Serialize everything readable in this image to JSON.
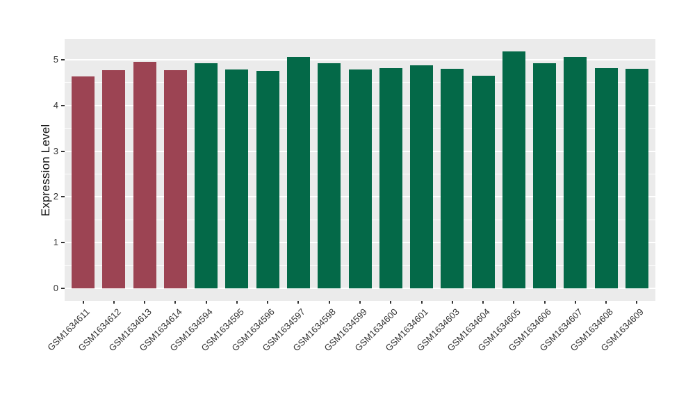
{
  "chart_data": {
    "type": "bar",
    "title": "",
    "xlabel": "",
    "ylabel": "Expression Level",
    "categories": [
      "GSM1634611",
      "GSM1634612",
      "GSM1634613",
      "GSM1634614",
      "GSM1634594",
      "GSM1634595",
      "GSM1634596",
      "GSM1634597",
      "GSM1634598",
      "GSM1634599",
      "GSM1634600",
      "GSM1634601",
      "GSM1634603",
      "GSM1634604",
      "GSM1634605",
      "GSM1634606",
      "GSM1634607",
      "GSM1634608",
      "GSM1634609"
    ],
    "values": [
      4.64,
      4.77,
      4.95,
      4.77,
      4.92,
      4.79,
      4.76,
      5.06,
      4.92,
      4.79,
      4.82,
      4.88,
      4.8,
      4.65,
      5.18,
      4.93,
      5.06,
      4.82,
      4.81
    ],
    "bar_colors": [
      "#9c4453",
      "#9c4453",
      "#9c4453",
      "#9c4453",
      "#046948",
      "#046948",
      "#046948",
      "#046948",
      "#046948",
      "#046948",
      "#046948",
      "#046948",
      "#046948",
      "#046948",
      "#046948",
      "#046948",
      "#046948",
      "#046948",
      "#046948"
    ],
    "group_colors": {
      "first_group": "#9c4453",
      "second_group": "#046948"
    },
    "yticks": [
      0,
      1,
      2,
      3,
      4,
      5
    ],
    "minor_ticks": [
      0.5,
      1.5,
      2.5,
      3.5,
      4.5
    ],
    "ylim": [
      0,
      5.46
    ],
    "grid": true,
    "legend_position": "none",
    "panel_bg": "#ebebeb",
    "grid_color": "#ffffff",
    "tick_label_color": "#333333",
    "axis_title_color": "#111111"
  }
}
